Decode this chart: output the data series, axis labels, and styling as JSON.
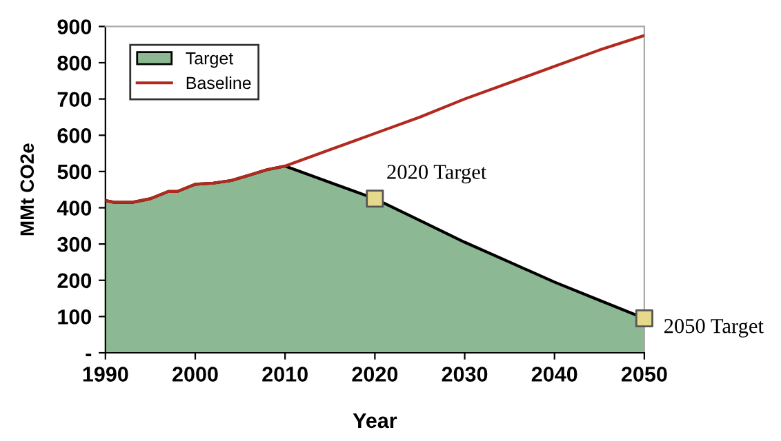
{
  "chart_data": {
    "type": "area",
    "xlabel": "Year",
    "ylabel": "MMt CO2e",
    "series": [
      {
        "name": "Target",
        "color": "#8db894",
        "x": [
          1990,
          1991,
          1993,
          1995,
          1997,
          1998,
          2000,
          2002,
          2004,
          2006,
          2008,
          2010,
          2015,
          2020,
          2025,
          2030,
          2035,
          2040,
          2045,
          2050
        ],
        "values": [
          420,
          415,
          415,
          425,
          445,
          445,
          465,
          468,
          475,
          490,
          505,
          515,
          470,
          425,
          365,
          305,
          250,
          195,
          145,
          95
        ]
      },
      {
        "name": "Baseline",
        "type": "line",
        "color": "#b22a1e",
        "x": [
          1990,
          1991,
          1993,
          1995,
          1997,
          1998,
          2000,
          2002,
          2004,
          2006,
          2008,
          2010,
          2015,
          2020,
          2025,
          2030,
          2035,
          2040,
          2045,
          2050
        ],
        "values": [
          420,
          415,
          415,
          425,
          445,
          445,
          465,
          468,
          475,
          490,
          505,
          515,
          560,
          605,
          650,
          700,
          745,
          790,
          835,
          875
        ]
      },
      {
        "type": "scatter",
        "marker": "square",
        "color": "#e6d98c",
        "x": [
          2020,
          2050
        ],
        "values": [
          425,
          95
        ]
      }
    ],
    "annotations": [
      {
        "text": "2020 Target",
        "x": 2020,
        "y": 425
      },
      {
        "text": "2050 Target",
        "x": 2050,
        "y": 95
      }
    ],
    "xlim": [
      1990,
      2050
    ],
    "xticks": [
      1990,
      2000,
      2010,
      2020,
      2030,
      2040,
      2050
    ],
    "ylim": [
      0,
      900
    ],
    "yticks": [
      {
        "value": 0,
        "label": "-"
      },
      100,
      200,
      300,
      400,
      500,
      600,
      700,
      800,
      900
    ],
    "legend": "top left",
    "grid": false
  }
}
